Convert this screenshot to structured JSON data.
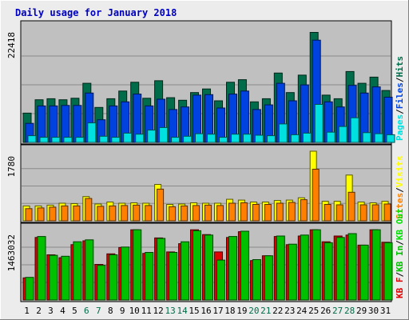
{
  "title": "Daily usage for January 2018",
  "colors": {
    "background": "#ECECEC",
    "plot_bg": "#C0C0C0",
    "title": "#0000C0",
    "hits": "#006C4A",
    "files": "#0042E0",
    "pages": "#00E0E0",
    "visits": "#FFFF00",
    "sites": "#FF8000",
    "kbin": "#00C000",
    "kbout": "#00E000",
    "kbf": "#E00000",
    "weekend": "#006C4A",
    "weekday": "#000000"
  },
  "chart_data": [
    {
      "type": "bar",
      "title": "Daily usage for January 2018",
      "categories": [
        "1",
        "2",
        "3",
        "4",
        "5",
        "6",
        "7",
        "8",
        "9",
        "10",
        "11",
        "12",
        "13",
        "14",
        "15",
        "16",
        "17",
        "18",
        "19",
        "20",
        "21",
        "22",
        "23",
        "24",
        "25",
        "26",
        "27",
        "28",
        "29",
        "30",
        "31"
      ],
      "weekend_days": [
        "6",
        "7",
        "13",
        "14",
        "20",
        "21",
        "27",
        "28"
      ],
      "ymax_label": "22418",
      "ylim": [
        0,
        22418
      ],
      "grid": true,
      "legend": [
        {
          "key": "pages",
          "label": "Pages"
        },
        {
          "key": "files",
          "label": "Files"
        },
        {
          "key": "hits",
          "label": "Hits"
        }
      ],
      "legend_separator": "/",
      "series": [
        {
          "key": "hits",
          "name": "Hits",
          "values": [
            5700,
            8300,
            8500,
            8300,
            8600,
            11500,
            6800,
            8500,
            10000,
            11700,
            8600,
            12000,
            8700,
            8200,
            9700,
            10400,
            8100,
            11700,
            12200,
            7900,
            8500,
            13500,
            9700,
            13100,
            21400,
            9200,
            8500,
            13800,
            11500,
            12700,
            10100
          ]
        },
        {
          "key": "files",
          "name": "Files",
          "values": [
            3700,
            7100,
            7100,
            7200,
            7200,
            9600,
            4400,
            7100,
            7900,
            9400,
            7100,
            8400,
            6400,
            6900,
            9200,
            9300,
            6700,
            9400,
            10000,
            6400,
            7300,
            11500,
            8100,
            11200,
            19900,
            7900,
            6900,
            11100,
            9600,
            10800,
            8800
          ]
        },
        {
          "key": "pages",
          "name": "Pages",
          "values": [
            1300,
            1000,
            1000,
            1000,
            1000,
            3800,
            1200,
            1000,
            1800,
            1600,
            2400,
            2900,
            1000,
            1200,
            1700,
            1600,
            1000,
            1600,
            1600,
            1400,
            1300,
            3600,
            1500,
            1800,
            7400,
            2000,
            3100,
            4800,
            1900,
            1700,
            1500
          ]
        }
      ]
    },
    {
      "type": "bar",
      "categories": [
        "1",
        "2",
        "3",
        "4",
        "5",
        "6",
        "7",
        "8",
        "9",
        "10",
        "11",
        "12",
        "13",
        "14",
        "15",
        "16",
        "17",
        "18",
        "19",
        "20",
        "21",
        "22",
        "23",
        "24",
        "25",
        "26",
        "27",
        "28",
        "29",
        "30",
        "31"
      ],
      "ymax_label": "1780",
      "ylim": [
        0,
        1780
      ],
      "grid": true,
      "legend": [
        {
          "key": "sites",
          "label": "Sites"
        },
        {
          "key": "visits",
          "label": "Visits"
        }
      ],
      "legend_separator": "/",
      "series": [
        {
          "key": "visits",
          "name": "Visits",
          "values": [
            380,
            380,
            400,
            450,
            440,
            620,
            430,
            480,
            450,
            460,
            450,
            930,
            420,
            430,
            460,
            450,
            450,
            550,
            530,
            480,
            480,
            520,
            530,
            590,
            1780,
            500,
            500,
            1170,
            480,
            460,
            500
          ]
        },
        {
          "key": "sites",
          "name": "Sites",
          "values": [
            310,
            330,
            350,
            380,
            380,
            570,
            370,
            380,
            390,
            400,
            390,
            810,
            360,
            380,
            390,
            400,
            390,
            450,
            460,
            420,
            420,
            450,
            470,
            540,
            1320,
            420,
            410,
            730,
            410,
            410,
            430
          ]
        }
      ]
    },
    {
      "type": "bar",
      "categories": [
        "1",
        "2",
        "3",
        "4",
        "5",
        "6",
        "7",
        "8",
        "9",
        "10",
        "11",
        "12",
        "13",
        "14",
        "15",
        "16",
        "17",
        "18",
        "19",
        "20",
        "21",
        "22",
        "23",
        "24",
        "25",
        "26",
        "27",
        "28",
        "29",
        "30",
        "31"
      ],
      "ymax_label": "1463032",
      "ylim": [
        0,
        1463032
      ],
      "grid": true,
      "legend": [
        {
          "key": "kbf",
          "label": "KB F"
        },
        {
          "key": "kbin",
          "label": "KB In"
        },
        {
          "key": "kbout",
          "label": "KB Out"
        }
      ],
      "legend_separator": "/",
      "series": [
        {
          "key": "kbf",
          "name": "KB F",
          "values": [
            460000,
            1300000,
            940000,
            880000,
            1150000,
            1230000,
            740000,
            960000,
            1090000,
            1460000,
            970000,
            1290000,
            1000000,
            1170000,
            1460000,
            1360000,
            1000000,
            1300000,
            1420000,
            820000,
            920000,
            1320000,
            1150000,
            1330000,
            1460000,
            1210000,
            1330000,
            1350000,
            1140000,
            1460000,
            1200000
          ]
        },
        {
          "key": "kbin",
          "name": "KB In",
          "values": [
            470000,
            1320000,
            930000,
            910000,
            1210000,
            1250000,
            720000,
            940000,
            1100000,
            1460000,
            990000,
            1280000,
            990000,
            1210000,
            1440000,
            1350000,
            830000,
            1320000,
            1430000,
            840000,
            920000,
            1330000,
            1160000,
            1350000,
            1460000,
            1190000,
            1300000,
            1380000,
            1140000,
            1460000,
            1190000
          ]
        }
      ]
    }
  ]
}
